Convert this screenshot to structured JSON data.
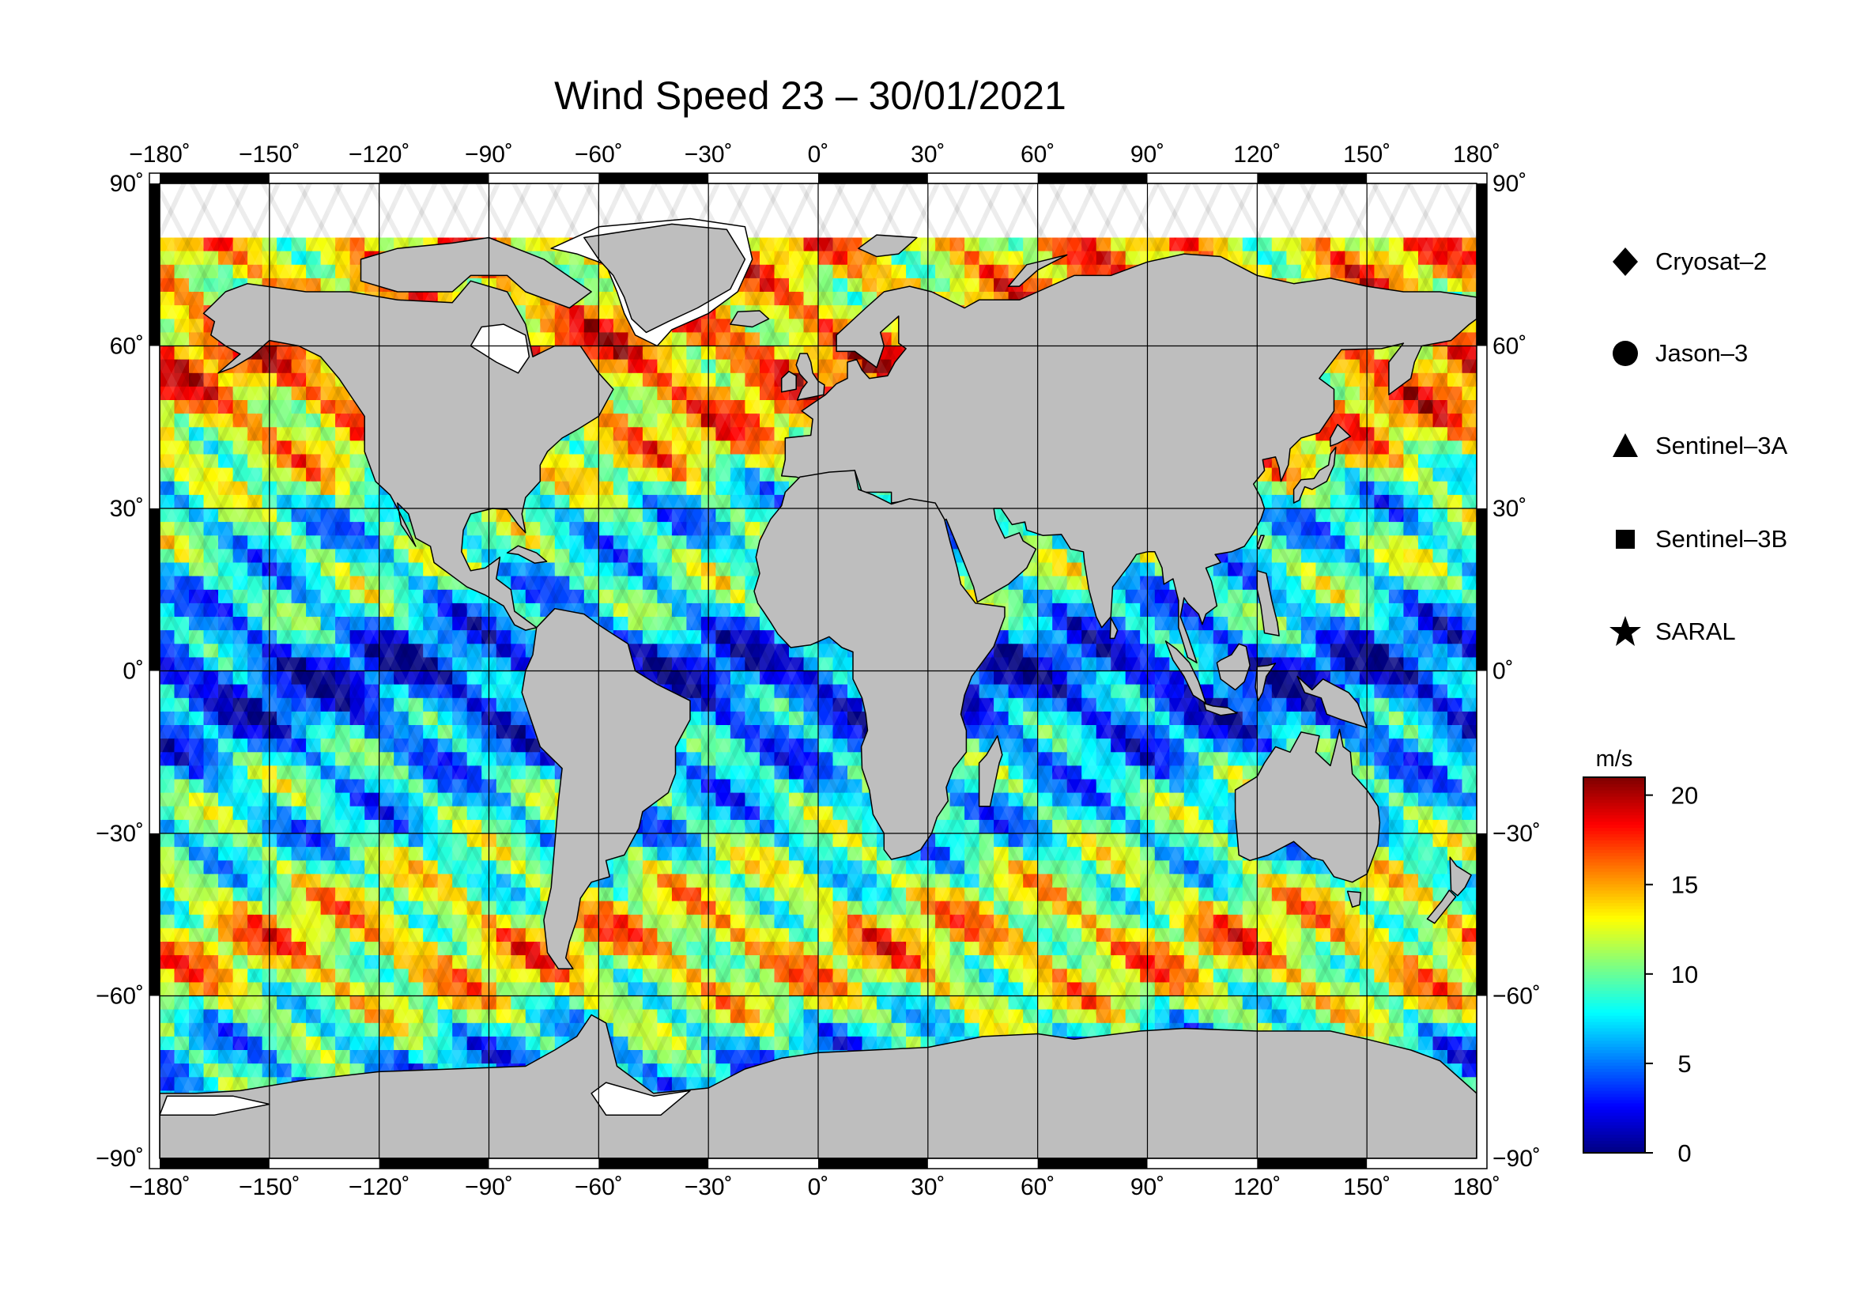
{
  "title": "Wind Speed 23 – 30/01/2021",
  "map": {
    "projection": "equirectangular",
    "lon_range": [
      -180,
      180
    ],
    "lat_range": [
      -90,
      90
    ],
    "lon_ticks": [
      -180,
      -150,
      -120,
      -90,
      -60,
      -30,
      0,
      30,
      60,
      90,
      120,
      150,
      180
    ],
    "lat_ticks": [
      90,
      60,
      30,
      0,
      -30,
      -60,
      -90
    ],
    "lon_tick_labels": [
      "−180˚",
      "−150˚",
      "−120˚",
      "−90˚",
      "−60˚",
      "−30˚",
      "0˚",
      "30˚",
      "60˚",
      "90˚",
      "120˚",
      "150˚",
      "180˚"
    ],
    "lat_tick_labels": [
      "90˚",
      "60˚",
      "30˚",
      "0˚",
      "−30˚",
      "−60˚",
      "−90˚"
    ],
    "land_color": "#bebebe",
    "ice_color": "#ffffff",
    "grid": true
  },
  "legend": {
    "items": [
      {
        "label": "Cryosat–2",
        "symbol": "diamond"
      },
      {
        "label": "Jason–3",
        "symbol": "circle"
      },
      {
        "label": "Sentinel–3A",
        "symbol": "triangle"
      },
      {
        "label": "Sentinel–3B",
        "symbol": "square"
      },
      {
        "label": "SARAL",
        "symbol": "star"
      }
    ]
  },
  "colorbar": {
    "unit": "m/s",
    "min": 0,
    "max": 21,
    "ticks": [
      0,
      5,
      10,
      15,
      20
    ],
    "tick_labels": [
      "0",
      "5",
      "10",
      "15",
      "20"
    ],
    "colormap": "jet"
  },
  "chart_data": {
    "type": "heatmap",
    "title": "Wind Speed 23 – 30/01/2021",
    "variable": "wind speed",
    "unit": "m/s",
    "value_range": [
      0,
      21
    ],
    "zonal_wind_profile": [
      {
        "lat": -70,
        "speed": 7
      },
      {
        "lat": -60,
        "speed": 12
      },
      {
        "lat": -50,
        "speed": 14
      },
      {
        "lat": -40,
        "speed": 11
      },
      {
        "lat": -30,
        "speed": 8
      },
      {
        "lat": -20,
        "speed": 8
      },
      {
        "lat": -10,
        "speed": 5
      },
      {
        "lat": 0,
        "speed": 3
      },
      {
        "lat": 10,
        "speed": 7
      },
      {
        "lat": 20,
        "speed": 9
      },
      {
        "lat": 30,
        "speed": 8
      },
      {
        "lat": 40,
        "speed": 13
      },
      {
        "lat": 50,
        "speed": 15
      },
      {
        "lat": 60,
        "speed": 16
      },
      {
        "lat": 70,
        "speed": 14
      }
    ]
  }
}
